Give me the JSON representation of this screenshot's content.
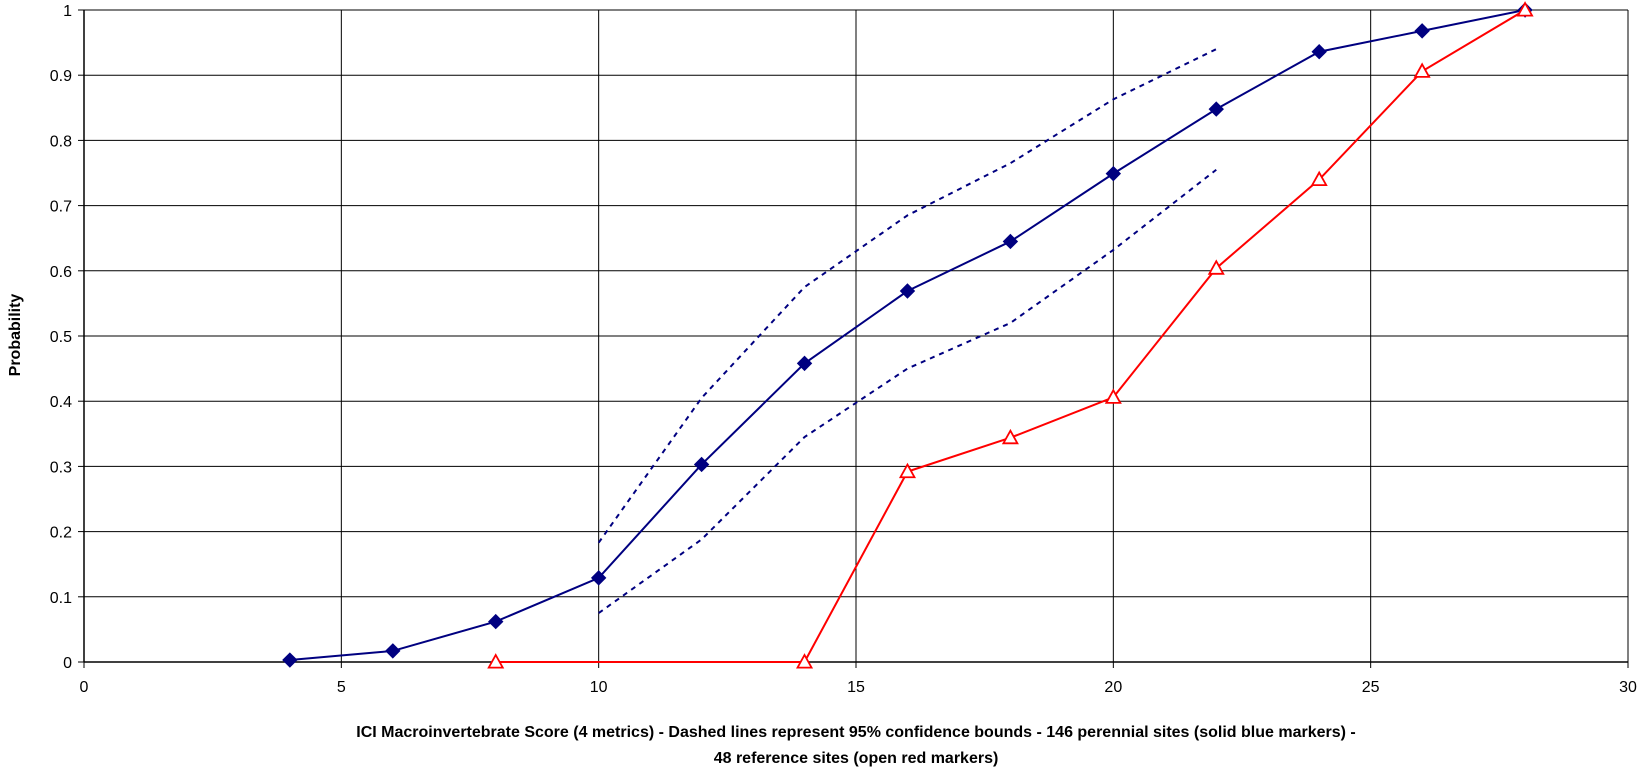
{
  "chart_data": {
    "type": "line",
    "title": "",
    "xlabel_lines": [
      "ICI Macroinvertebrate Score (4 metrics) - Dashed lines represent 95% confidence bounds - 146 perennial sites (solid blue markers) -",
      "48 reference sites (open red markers)"
    ],
    "ylabel": "Probability",
    "xlim": [
      0,
      30
    ],
    "ylim": [
      0,
      1
    ],
    "x_ticks": [
      0,
      5,
      10,
      15,
      20,
      25,
      30
    ],
    "y_ticks": [
      0,
      0.1,
      0.2,
      0.3,
      0.4,
      0.5,
      0.6,
      0.7,
      0.8,
      0.9,
      1
    ],
    "grid": true,
    "legend": "none",
    "series": [
      {
        "marker": "filled-diamond",
        "line": "solid",
        "color": "#000080",
        "points": [
          {
            "x": 4,
            "y": 0.003
          },
          {
            "x": 6,
            "y": 0.017
          },
          {
            "x": 8,
            "y": 0.062
          },
          {
            "x": 10,
            "y": 0.129
          },
          {
            "x": 12,
            "y": 0.303
          },
          {
            "x": 14,
            "y": 0.458
          },
          {
            "x": 16,
            "y": 0.569
          },
          {
            "x": 18,
            "y": 0.645
          },
          {
            "x": 20,
            "y": 0.749
          },
          {
            "x": 22,
            "y": 0.848
          },
          {
            "x": 24,
            "y": 0.936
          },
          {
            "x": 26,
            "y": 0.968
          },
          {
            "x": 28,
            "y": 1.0
          }
        ]
      },
      {
        "marker": "open-triangle",
        "line": "solid",
        "color": "#ff0000",
        "points": [
          {
            "x": 8,
            "y": 0.0
          },
          {
            "x": 14,
            "y": 0.0
          },
          {
            "x": 16,
            "y": 0.292
          },
          {
            "x": 18,
            "y": 0.344
          },
          {
            "x": 20,
            "y": 0.406
          },
          {
            "x": 22,
            "y": 0.604
          },
          {
            "x": 24,
            "y": 0.74
          },
          {
            "x": 26,
            "y": 0.906
          },
          {
            "x": 28,
            "y": 1.0
          }
        ]
      },
      {
        "marker": "none",
        "line": "dashed",
        "color": "#000080",
        "points": [
          {
            "x": 10,
            "y": 0.183
          },
          {
            "x": 12,
            "y": 0.405
          },
          {
            "x": 14,
            "y": 0.575
          },
          {
            "x": 16,
            "y": 0.685
          },
          {
            "x": 18,
            "y": 0.765
          },
          {
            "x": 20,
            "y": 0.863
          },
          {
            "x": 22,
            "y": 0.94
          }
        ]
      },
      {
        "marker": "none",
        "line": "dashed",
        "color": "#000080",
        "points": [
          {
            "x": 10,
            "y": 0.075
          },
          {
            "x": 12,
            "y": 0.188
          },
          {
            "x": 14,
            "y": 0.345
          },
          {
            "x": 16,
            "y": 0.45
          },
          {
            "x": 18,
            "y": 0.52
          },
          {
            "x": 20,
            "y": 0.632
          },
          {
            "x": 22,
            "y": 0.755
          }
        ]
      }
    ]
  }
}
